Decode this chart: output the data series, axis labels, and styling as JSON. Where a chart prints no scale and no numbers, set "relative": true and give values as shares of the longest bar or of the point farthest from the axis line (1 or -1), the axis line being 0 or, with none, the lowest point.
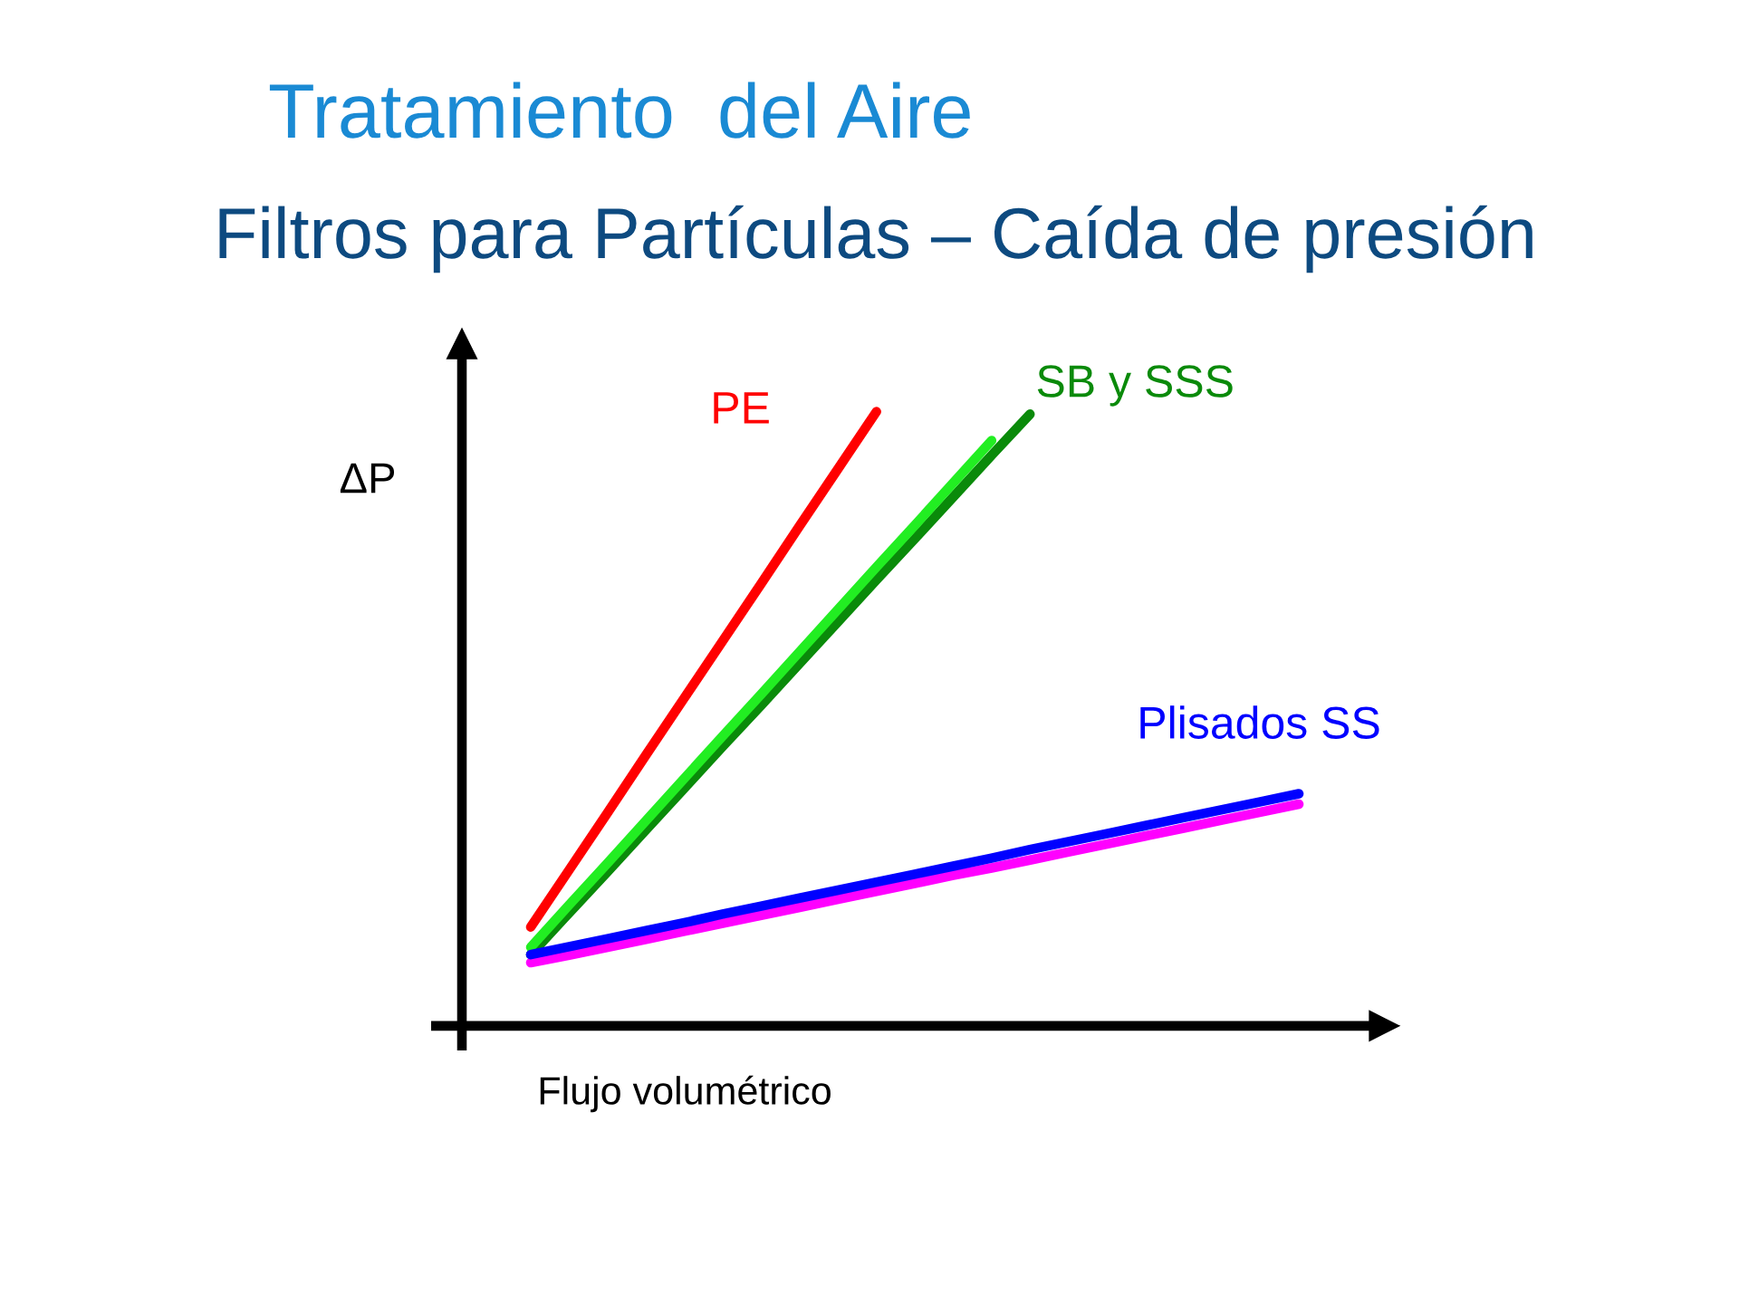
{
  "chart_data": {
    "type": "line",
    "title": "Tratamiento  del Aire",
    "subtitle": "Filtros para Partículas – Caída de presión",
    "xlabel": "Flujo volumétrico",
    "ylabel": "ΔP",
    "relative": true,
    "categories": [
      null,
      null,
      null,
      null,
      null,
      null,
      null,
      null,
      null,
      null,
      null,
      null,
      null,
      null,
      null,
      null,
      null,
      null,
      null,
      null,
      null
    ],
    "series": [
      {
        "name": "PE",
        "color": "#ff0000",
        "values": [
          0.161,
          0.254,
          0.347,
          0.441,
          0.534,
          0.627,
          0.72,
          0.814,
          0.907,
          1.0,
          null,
          null,
          null,
          null,
          null,
          null,
          null,
          null,
          null,
          null,
          null
        ]
      },
      {
        "name": "SB y SSS",
        "color": "#0a8a0a",
        "values": [
          0.116,
          0.184,
          0.251,
          0.319,
          0.387,
          0.455,
          0.522,
          0.59,
          0.658,
          0.726,
          0.793,
          0.861,
          0.929,
          0.996,
          null,
          null,
          null,
          null,
          null,
          null,
          null
        ]
      },
      {
        "color": "#22ee22",
        "values": [
          0.128,
          0.197,
          0.265,
          0.334,
          0.403,
          0.472,
          0.54,
          0.609,
          0.678,
          0.747,
          0.815,
          0.884,
          0.953,
          null,
          null,
          null,
          null,
          null,
          null,
          null,
          null
        ]
      },
      {
        "color": "#ff00ff",
        "values": [
          0.103,
          0.115,
          0.128,
          0.141,
          0.154,
          0.167,
          0.18,
          0.193,
          0.206,
          0.219,
          0.232,
          0.245,
          0.257,
          0.27,
          0.283,
          0.296,
          0.309,
          0.322,
          0.335,
          0.348,
          0.361
        ]
      },
      {
        "name": "Plisados SS",
        "color": "#0000ff",
        "values": [
          0.116,
          0.129,
          0.142,
          0.155,
          0.168,
          0.182,
          0.195,
          0.208,
          0.221,
          0.234,
          0.247,
          0.26,
          0.273,
          0.287,
          0.3,
          0.313,
          0.326,
          0.339,
          0.352,
          0.365,
          0.378
        ]
      }
    ]
  }
}
